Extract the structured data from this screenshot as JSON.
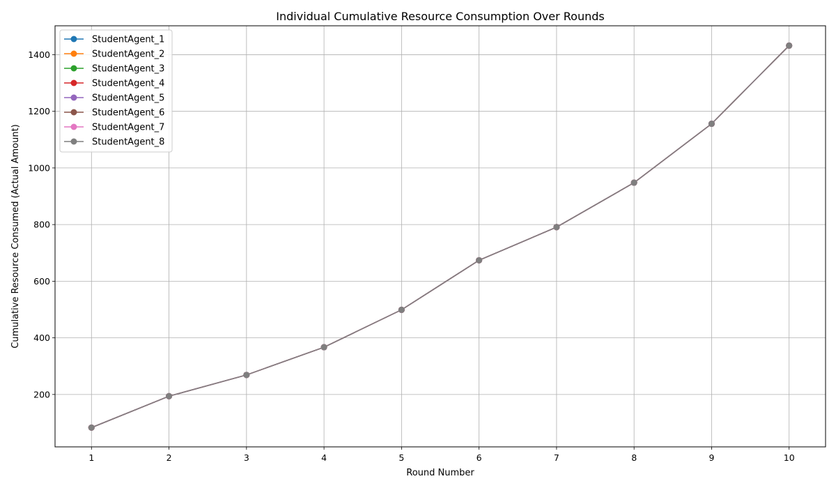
{
  "chart_data": {
    "type": "line",
    "title": "Individual Cumulative Resource Consumption Over Rounds",
    "xlabel": "Round Number",
    "ylabel": "Cumulative Resource Consumed (Actual Amount)",
    "x": [
      1,
      2,
      3,
      4,
      5,
      6,
      7,
      8,
      9,
      10
    ],
    "xlim": [
      0.53,
      10.47
    ],
    "ylim": [
      15,
      1502
    ],
    "yticks": [
      200,
      400,
      600,
      800,
      1000,
      1200,
      1400
    ],
    "grid": true,
    "legend_position": "top-left",
    "series": [
      {
        "name": "StudentAgent_1",
        "color": "#1f77b4",
        "values": [
          83,
          194,
          269,
          367,
          499,
          674,
          791,
          948,
          1156,
          1432
        ]
      },
      {
        "name": "StudentAgent_2",
        "color": "#ff7f0e",
        "values": [
          83,
          194,
          269,
          367,
          499,
          674,
          791,
          948,
          1156,
          1432
        ]
      },
      {
        "name": "StudentAgent_3",
        "color": "#2ca02c",
        "values": [
          83,
          194,
          269,
          367,
          499,
          674,
          791,
          948,
          1156,
          1432
        ]
      },
      {
        "name": "StudentAgent_4",
        "color": "#d62728",
        "values": [
          83,
          194,
          269,
          367,
          499,
          674,
          791,
          948,
          1156,
          1432
        ]
      },
      {
        "name": "StudentAgent_5",
        "color": "#9467bd",
        "values": [
          83,
          194,
          269,
          367,
          499,
          674,
          791,
          948,
          1156,
          1432
        ]
      },
      {
        "name": "StudentAgent_6",
        "color": "#8c564b",
        "values": [
          83,
          194,
          269,
          367,
          499,
          674,
          791,
          948,
          1156,
          1432
        ]
      },
      {
        "name": "StudentAgent_7",
        "color": "#e377c2",
        "values": [
          83,
          194,
          269,
          367,
          499,
          674,
          791,
          948,
          1156,
          1432
        ]
      },
      {
        "name": "StudentAgent_8",
        "color": "#7f7f7f",
        "values": [
          83,
          194,
          269,
          367,
          499,
          674,
          791,
          948,
          1156,
          1432
        ]
      }
    ]
  }
}
